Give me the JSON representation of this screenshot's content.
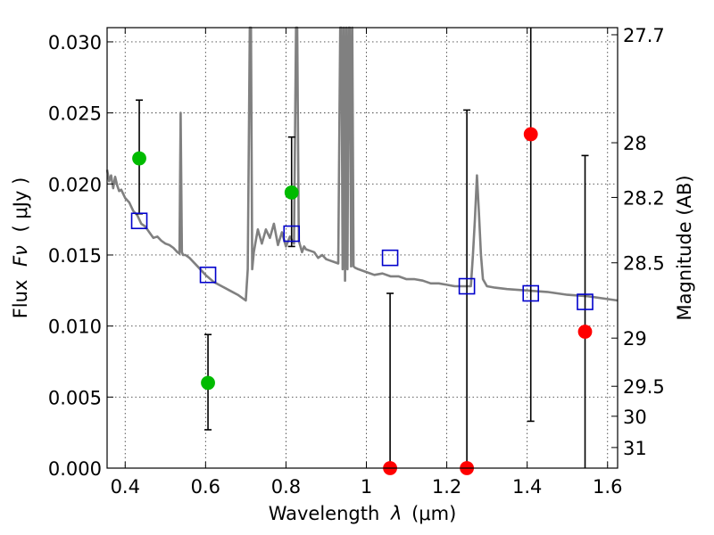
{
  "chart_data": {
    "type": "scatter",
    "title": "",
    "xlabel_text": "Wavelength",
    "xlabel_symbol": "λ",
    "xlabel_unit": "(μm)",
    "ylabel_text": "Flux",
    "ylabel_symbol": "Fν",
    "ylabel_unit": "( μJy )",
    "y2label": "Magnitude (AB)",
    "xlim": [
      0.355,
      1.625
    ],
    "ylim": [
      0.0,
      0.031
    ],
    "grid": true,
    "x_ticks": [
      {
        "value": 0.4,
        "label": "0.4"
      },
      {
        "value": 0.6,
        "label": "0.6"
      },
      {
        "value": 0.8,
        "label": "0.8"
      },
      {
        "value": 1.0,
        "label": "1"
      },
      {
        "value": 1.2,
        "label": "1.2"
      },
      {
        "value": 1.4,
        "label": "1.4"
      },
      {
        "value": 1.6,
        "label": "1.6"
      }
    ],
    "y_ticks": [
      {
        "value": 0.0,
        "label": "0.000"
      },
      {
        "value": 0.005,
        "label": "0.005"
      },
      {
        "value": 0.01,
        "label": "0.010"
      },
      {
        "value": 0.015,
        "label": "0.015"
      },
      {
        "value": 0.02,
        "label": "0.020"
      },
      {
        "value": 0.025,
        "label": "0.025"
      },
      {
        "value": 0.03,
        "label": "0.030"
      }
    ],
    "y2_ticks": [
      {
        "flux": 0.0305,
        "label": "27.7"
      },
      {
        "flux": 0.0229,
        "label": "28"
      },
      {
        "flux": 0.01905,
        "label": "28.2"
      },
      {
        "flux": 0.01445,
        "label": "28.5"
      },
      {
        "flux": 0.00915,
        "label": "29"
      },
      {
        "flux": 0.00576,
        "label": "29.5"
      },
      {
        "flux": 0.00365,
        "label": "30"
      },
      {
        "flux": 0.00145,
        "label": "31"
      }
    ],
    "series": [
      {
        "kind": "detection",
        "color": "#00bb00",
        "points": [
          {
            "x": 0.435,
            "y": 0.0218,
            "err_lo": 0.0179,
            "err_hi": 0.0259
          },
          {
            "x": 0.606,
            "y": 0.006,
            "err_lo": 0.0027,
            "err_hi": 0.0094
          },
          {
            "x": 0.814,
            "y": 0.0194,
            "err_lo": 0.0156,
            "err_hi": 0.0233
          }
        ]
      },
      {
        "kind": "non-detection",
        "color": "#ff0000",
        "points": [
          {
            "x": 1.059,
            "y": 0.0,
            "err_lo": 0.0,
            "err_hi": 0.0123
          },
          {
            "x": 1.25,
            "y": 0.0,
            "err_lo": 0.0,
            "err_hi": 0.0252
          },
          {
            "x": 1.409,
            "y": 0.0235,
            "err_lo": 0.0033,
            "err_hi": 0.0312
          },
          {
            "x": 1.544,
            "y": 0.0096,
            "err_lo": 0.0,
            "err_hi": 0.022
          }
        ]
      },
      {
        "kind": "model-photometry",
        "color": "#0000cc",
        "points": [
          {
            "x": 0.435,
            "y": 0.0174
          },
          {
            "x": 0.606,
            "y": 0.0136
          },
          {
            "x": 0.814,
            "y": 0.0165
          },
          {
            "x": 1.059,
            "y": 0.0148
          },
          {
            "x": 1.25,
            "y": 0.0128
          },
          {
            "x": 1.409,
            "y": 0.0123
          },
          {
            "x": 1.544,
            "y": 0.0117
          }
        ]
      },
      {
        "kind": "model-spectrum",
        "color": "#808080",
        "x": [
          0.355,
          0.36,
          0.365,
          0.37,
          0.375,
          0.38,
          0.385,
          0.39,
          0.4,
          0.41,
          0.42,
          0.43,
          0.44,
          0.45,
          0.46,
          0.47,
          0.48,
          0.49,
          0.5,
          0.51,
          0.52,
          0.53,
          0.535,
          0.538,
          0.541,
          0.544,
          0.55,
          0.56,
          0.58,
          0.6,
          0.62,
          0.64,
          0.66,
          0.68,
          0.7,
          0.705,
          0.71,
          0.713,
          0.716,
          0.72,
          0.725,
          0.73,
          0.74,
          0.75,
          0.76,
          0.77,
          0.78,
          0.79,
          0.8,
          0.81,
          0.82,
          0.825,
          0.828,
          0.832,
          0.836,
          0.84,
          0.845,
          0.85,
          0.86,
          0.87,
          0.88,
          0.89,
          0.9,
          0.91,
          0.92,
          0.93,
          0.935,
          0.938,
          0.941,
          0.944,
          0.947,
          0.95,
          0.953,
          0.956,
          0.959,
          0.962,
          0.965,
          0.968,
          0.972,
          0.98,
          1.0,
          1.02,
          1.04,
          1.06,
          1.08,
          1.1,
          1.12,
          1.14,
          1.16,
          1.18,
          1.2,
          1.22,
          1.24,
          1.26,
          1.265,
          1.27,
          1.275,
          1.28,
          1.285,
          1.29,
          1.3,
          1.32,
          1.35,
          1.4,
          1.45,
          1.5,
          1.55,
          1.6,
          1.625
        ],
        "y": [
          0.021,
          0.0202,
          0.0206,
          0.0197,
          0.0205,
          0.0199,
          0.0195,
          0.0196,
          0.019,
          0.0187,
          0.0181,
          0.0178,
          0.0172,
          0.017,
          0.0166,
          0.0162,
          0.0163,
          0.016,
          0.0158,
          0.0157,
          0.0155,
          0.0152,
          0.0151,
          0.025,
          0.0152,
          0.015,
          0.015,
          0.0148,
          0.0142,
          0.0136,
          0.0131,
          0.0128,
          0.0125,
          0.0122,
          0.0118,
          0.014,
          0.031,
          0.031,
          0.014,
          0.0152,
          0.016,
          0.0168,
          0.0158,
          0.0168,
          0.0162,
          0.0172,
          0.0157,
          0.0166,
          0.0156,
          0.0163,
          0.0158,
          0.031,
          0.031,
          0.016,
          0.0156,
          0.0152,
          0.0156,
          0.0154,
          0.0153,
          0.0152,
          0.0148,
          0.015,
          0.0147,
          0.0146,
          0.0145,
          0.0144,
          0.031,
          0.031,
          0.014,
          0.031,
          0.0132,
          0.031,
          0.014,
          0.031,
          0.031,
          0.0142,
          0.031,
          0.0142,
          0.0141,
          0.014,
          0.0138,
          0.0136,
          0.0137,
          0.0135,
          0.0135,
          0.0133,
          0.0133,
          0.0132,
          0.013,
          0.013,
          0.0129,
          0.0128,
          0.0128,
          0.0128,
          0.015,
          0.0175,
          0.0206,
          0.018,
          0.015,
          0.0133,
          0.0128,
          0.0127,
          0.0126,
          0.0125,
          0.0124,
          0.0122,
          0.0121,
          0.0119,
          0.0118
        ]
      }
    ]
  }
}
